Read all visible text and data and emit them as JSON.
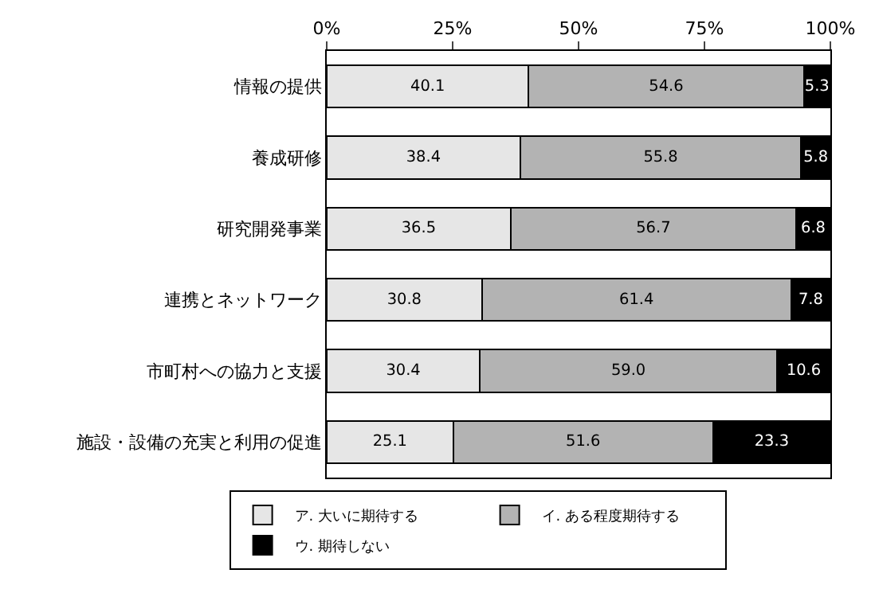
{
  "chart_data": {
    "type": "bar",
    "orientation": "horizontal",
    "stacked": true,
    "categories": [
      "情報の提供",
      "養成研修",
      "研究開発事業",
      "連携とネットワーク",
      "市町村への協力と支援",
      "施設・設備の充実と利用の促進"
    ],
    "series": [
      {
        "name": "ア. 大いに期待する",
        "color": "#e6e6e6",
        "values": [
          40.1,
          38.4,
          36.5,
          30.8,
          30.4,
          25.1
        ],
        "value_labels": [
          "40.1",
          "38.4",
          "36.5",
          "30.8",
          "30.4",
          "25.1"
        ]
      },
      {
        "name": "イ. ある程度期待する",
        "color": "#b3b3b3",
        "values": [
          54.6,
          55.8,
          56.7,
          61.4,
          59.0,
          51.6
        ],
        "value_labels": [
          "54.6",
          "55.8",
          "56.7",
          "61.4",
          "59.0",
          "51.6"
        ]
      },
      {
        "name": "ウ. 期待しない",
        "color": "#000000",
        "values": [
          5.3,
          5.8,
          6.8,
          7.8,
          10.6,
          23.3
        ],
        "value_labels": [
          "5.3",
          "5.8",
          "6.8",
          "7.8",
          "10.6",
          "23.3"
        ]
      }
    ],
    "xlim": [
      0,
      100
    ],
    "xticks": [
      {
        "value": 0,
        "label": "0%"
      },
      {
        "value": 25,
        "label": "25%"
      },
      {
        "value": 50,
        "label": "50%"
      },
      {
        "value": 75,
        "label": "75%"
      },
      {
        "value": 100,
        "label": "100%"
      }
    ],
    "grid": false,
    "legend": "bottom"
  }
}
